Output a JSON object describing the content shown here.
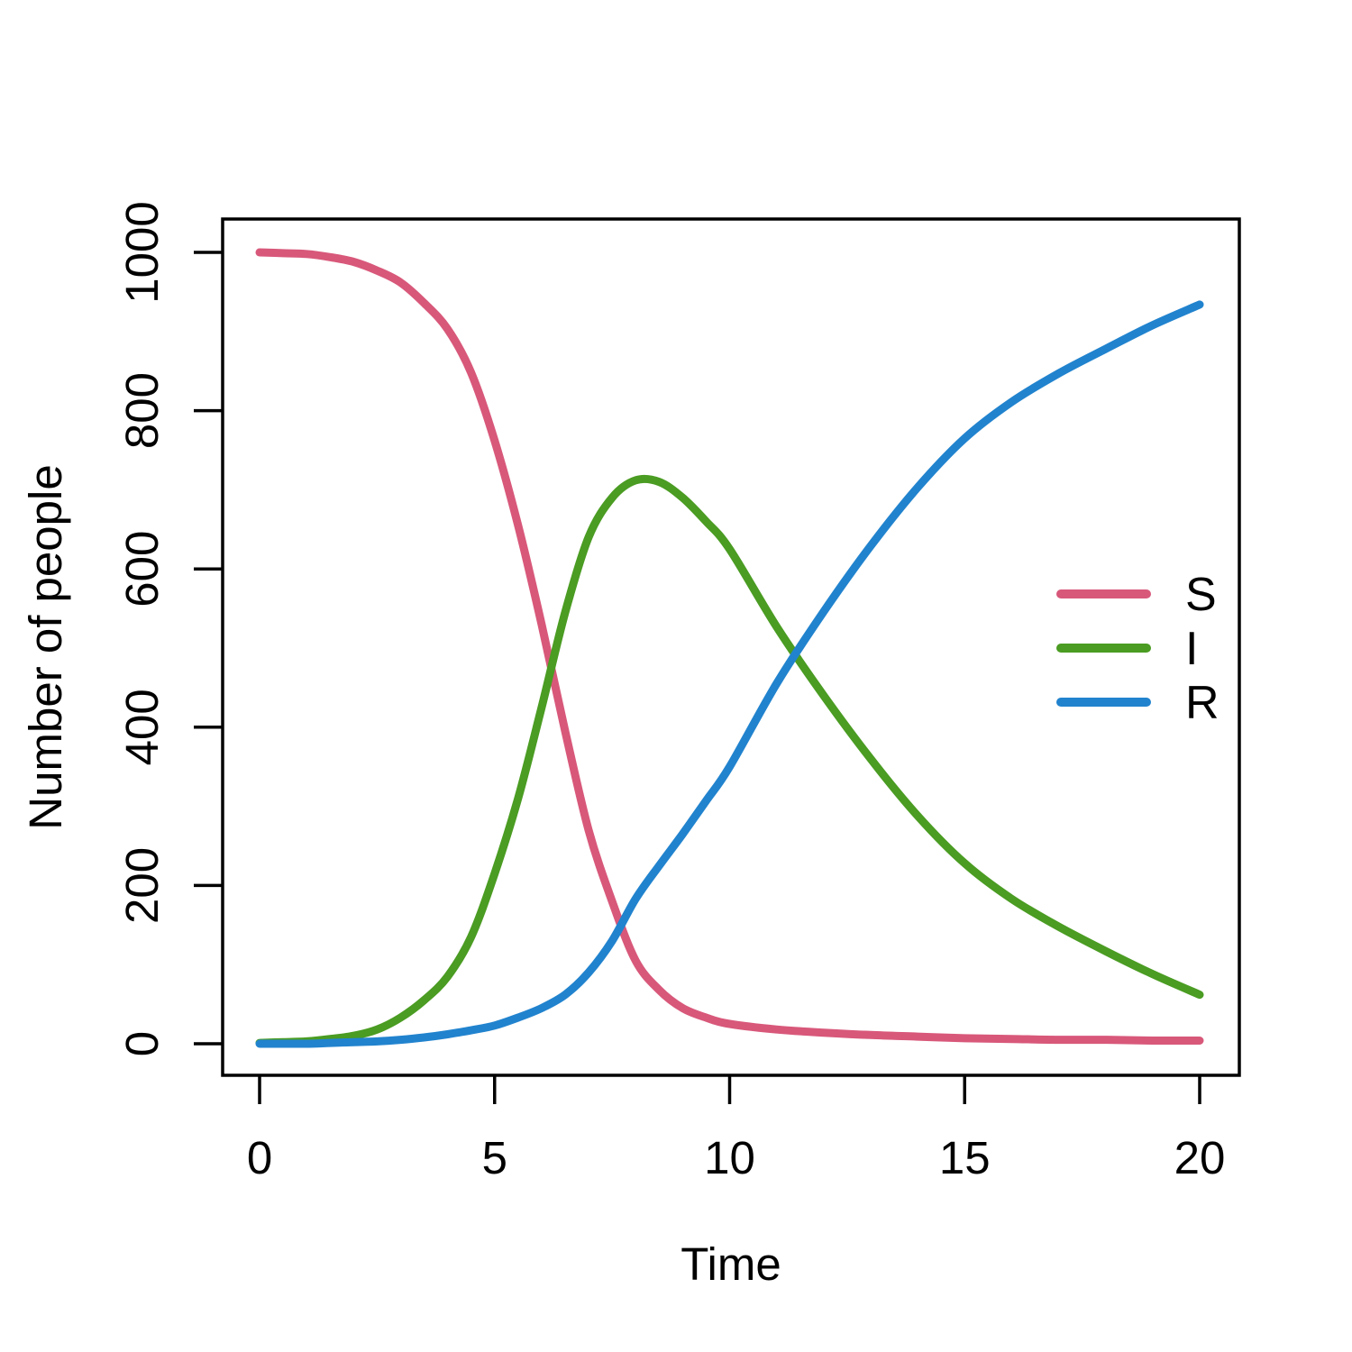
{
  "chart_data": {
    "type": "line",
    "title": "",
    "xlabel": "Time",
    "ylabel": "Number of people",
    "xlim": [
      0,
      20
    ],
    "ylim": [
      0,
      1000
    ],
    "x_ticks": [
      0,
      5,
      10,
      15,
      20
    ],
    "y_ticks": [
      0,
      200,
      400,
      600,
      800,
      1000
    ],
    "grid": false,
    "legend_position": "right-middle",
    "x": [
      0,
      0.5,
      1,
      1.5,
      2,
      2.5,
      3,
      3.5,
      4,
      4.5,
      5,
      5.5,
      6,
      6.5,
      7,
      7.5,
      8,
      8.5,
      9,
      9.5,
      10,
      11,
      12,
      13,
      14,
      15,
      16,
      17,
      18,
      19,
      20
    ],
    "series": [
      {
        "name": "S",
        "color": "#D8587A",
        "values": [
          1000,
          999,
          998,
          994,
          988,
          977,
          962,
          936,
          903,
          848,
          762,
          655,
          530,
          395,
          270,
          180,
          105,
          68,
          45,
          33,
          25,
          18,
          14,
          11,
          9,
          7,
          6,
          5,
          5,
          4,
          4
        ]
      },
      {
        "name": "I",
        "color": "#4A9C22",
        "values": [
          1,
          2,
          3,
          6,
          10,
          18,
          33,
          55,
          85,
          135,
          215,
          310,
          425,
          545,
          640,
          690,
          712,
          710,
          690,
          660,
          625,
          527,
          440,
          360,
          288,
          228,
          183,
          148,
          117,
          88,
          62
        ]
      },
      {
        "name": "R",
        "color": "#2183CE",
        "values": [
          0,
          0,
          0,
          1,
          2,
          3,
          5,
          8,
          12,
          17,
          23,
          33,
          45,
          62,
          90,
          130,
          183,
          225,
          265,
          307,
          350,
          455,
          546,
          629,
          703,
          765,
          811,
          847,
          878,
          908,
          934
        ]
      }
    ]
  },
  "style": {
    "axis_color": "#000000",
    "background": "#FFFFFF"
  }
}
